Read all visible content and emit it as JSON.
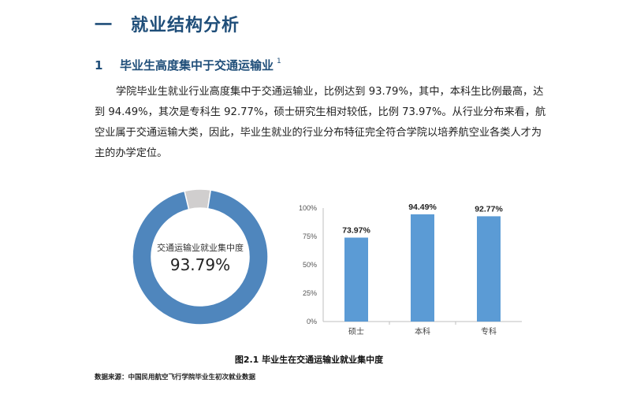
{
  "heading1": {
    "number": "一",
    "text": "就业结构分析"
  },
  "heading2": {
    "number": "1",
    "text": "毕业生高度集中于交通运输业",
    "footnote": "1"
  },
  "paragraph": "学院毕业生就业行业高度集中于交通运输业，比例达到 93.79%，其中，本科生比例最高，达到 94.49%，其次是专科生 92.77%，硕士研究生相对较低，比例 73.97%。从行业分布来看，航空业属于交通运输大类，因此，毕业生就业的行业分布特征完全符合学院以培养航空业各类人才为主的办学定位。",
  "chart_data": [
    {
      "type": "pie",
      "style": "donut",
      "center_label": "交通运输业就业集中度",
      "center_value": "93.79%",
      "slices": [
        {
          "label": "交通运输业",
          "value": 93.79,
          "color": "#4f86bd"
        },
        {
          "label": "",
          "value": 6.21,
          "color": "#d0cece"
        }
      ]
    },
    {
      "type": "bar",
      "categories": [
        "硕士",
        "本科",
        "专科"
      ],
      "values": [
        73.97,
        94.49,
        92.77
      ],
      "data_labels": [
        "73.97%",
        "94.49%",
        "92.77%"
      ],
      "yticks": [
        "0%",
        "25%",
        "50%",
        "75%",
        "100%"
      ],
      "ylim": [
        0,
        100
      ],
      "bar_color": "#5b9bd5",
      "grid": false
    }
  ],
  "figure_caption": "图2.1 毕业生在交通运输业就业集中度",
  "source_note": "数据来源：中国民用航空飞行学院毕业生初次就业数据"
}
